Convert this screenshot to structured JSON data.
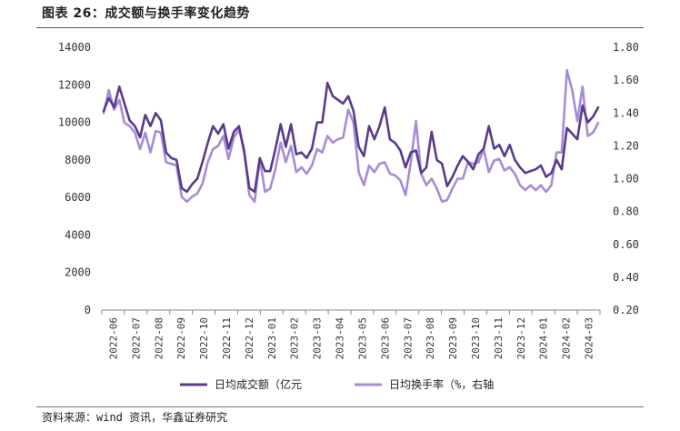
{
  "title": "图表 26：成交额与换手率变化趋势",
  "source": "资料来源：wind 资讯，华鑫证券研究",
  "chart_data": {
    "type": "line",
    "x_labels": [
      "2022-06",
      "2022-07",
      "2022-08",
      "2022-09",
      "2022-10",
      "2022-11",
      "2022-12",
      "2023-01",
      "2023-02",
      "2023-03",
      "2023-04",
      "2023-05",
      "2023-06",
      "2023-07",
      "2023-08",
      "2023-09",
      "2023-10",
      "2023-11",
      "2023-12",
      "2024-01",
      "2024-02",
      "2024-03"
    ],
    "left_axis": {
      "ylim": [
        0,
        14000
      ],
      "ticks": [
        "0",
        "2000",
        "4000",
        "6000",
        "8000",
        "10000",
        "12000",
        "14000"
      ]
    },
    "right_axis": {
      "ylim": [
        0.2,
        1.8
      ],
      "ticks": [
        "0.20",
        "0.40",
        "0.60",
        "0.80",
        "1.00",
        "1.20",
        "1.40",
        "1.60",
        "1.80"
      ]
    },
    "series": [
      {
        "name": "日均成交额（亿元",
        "axis": "left",
        "color": "#5b3a8c",
        "values": [
          10600,
          11300,
          10800,
          11900,
          11000,
          10100,
          9800,
          9200,
          10400,
          9800,
          10500,
          10100,
          8400,
          8100,
          8000,
          6500,
          6300,
          6700,
          7000,
          7900,
          8900,
          9800,
          9400,
          9900,
          8600,
          9500,
          9800,
          8400,
          6500,
          6300,
          8100,
          7400,
          7400,
          8600,
          9900,
          8700,
          9900,
          8300,
          8400,
          8100,
          8600,
          10000,
          10000,
          12100,
          11400,
          11200,
          11000,
          11400,
          10600,
          8700,
          8200,
          9800,
          9100,
          9800,
          10800,
          9100,
          8900,
          8500,
          7600,
          8400,
          8500,
          7300,
          7600,
          9500,
          8000,
          7800,
          6600,
          7100,
          7700,
          8200,
          7900,
          7500,
          8300,
          8600,
          9800,
          8600,
          8800,
          8200,
          8800,
          8000,
          7600,
          7300,
          7400,
          7500,
          7700,
          7100,
          7300,
          8000,
          7500,
          9700,
          9400,
          9100,
          10900,
          10000,
          10300,
          10800
        ]
      },
      {
        "name": "日均换手率（%，右轴",
        "axis": "right",
        "color": "#a78bd9",
        "values": [
          1.4,
          1.54,
          1.42,
          1.48,
          1.34,
          1.32,
          1.28,
          1.18,
          1.28,
          1.16,
          1.29,
          1.28,
          1.1,
          1.09,
          1.08,
          0.89,
          0.86,
          0.89,
          0.91,
          0.97,
          1.1,
          1.18,
          1.2,
          1.26,
          1.12,
          1.25,
          1.3,
          1.18,
          0.9,
          0.86,
          1.12,
          0.92,
          0.94,
          1.06,
          1.22,
          1.1,
          1.2,
          1.04,
          1.07,
          1.03,
          1.08,
          1.18,
          1.16,
          1.26,
          1.22,
          1.24,
          1.25,
          1.42,
          1.34,
          1.04,
          0.96,
          1.08,
          1.04,
          1.09,
          1.1,
          1.03,
          1.02,
          0.99,
          0.9,
          1.1,
          1.35,
          1.03,
          0.96,
          1.0,
          0.94,
          0.86,
          0.87,
          0.94,
          1.0,
          1.0,
          1.1,
          1.09,
          1.1,
          1.18,
          1.04,
          1.11,
          1.12,
          1.05,
          1.07,
          1.03,
          0.96,
          0.93,
          0.96,
          0.93,
          0.96,
          0.92,
          0.96,
          1.16,
          1.16,
          1.66,
          1.54,
          1.35,
          1.56,
          1.26,
          1.28,
          1.34
        ]
      }
    ]
  }
}
